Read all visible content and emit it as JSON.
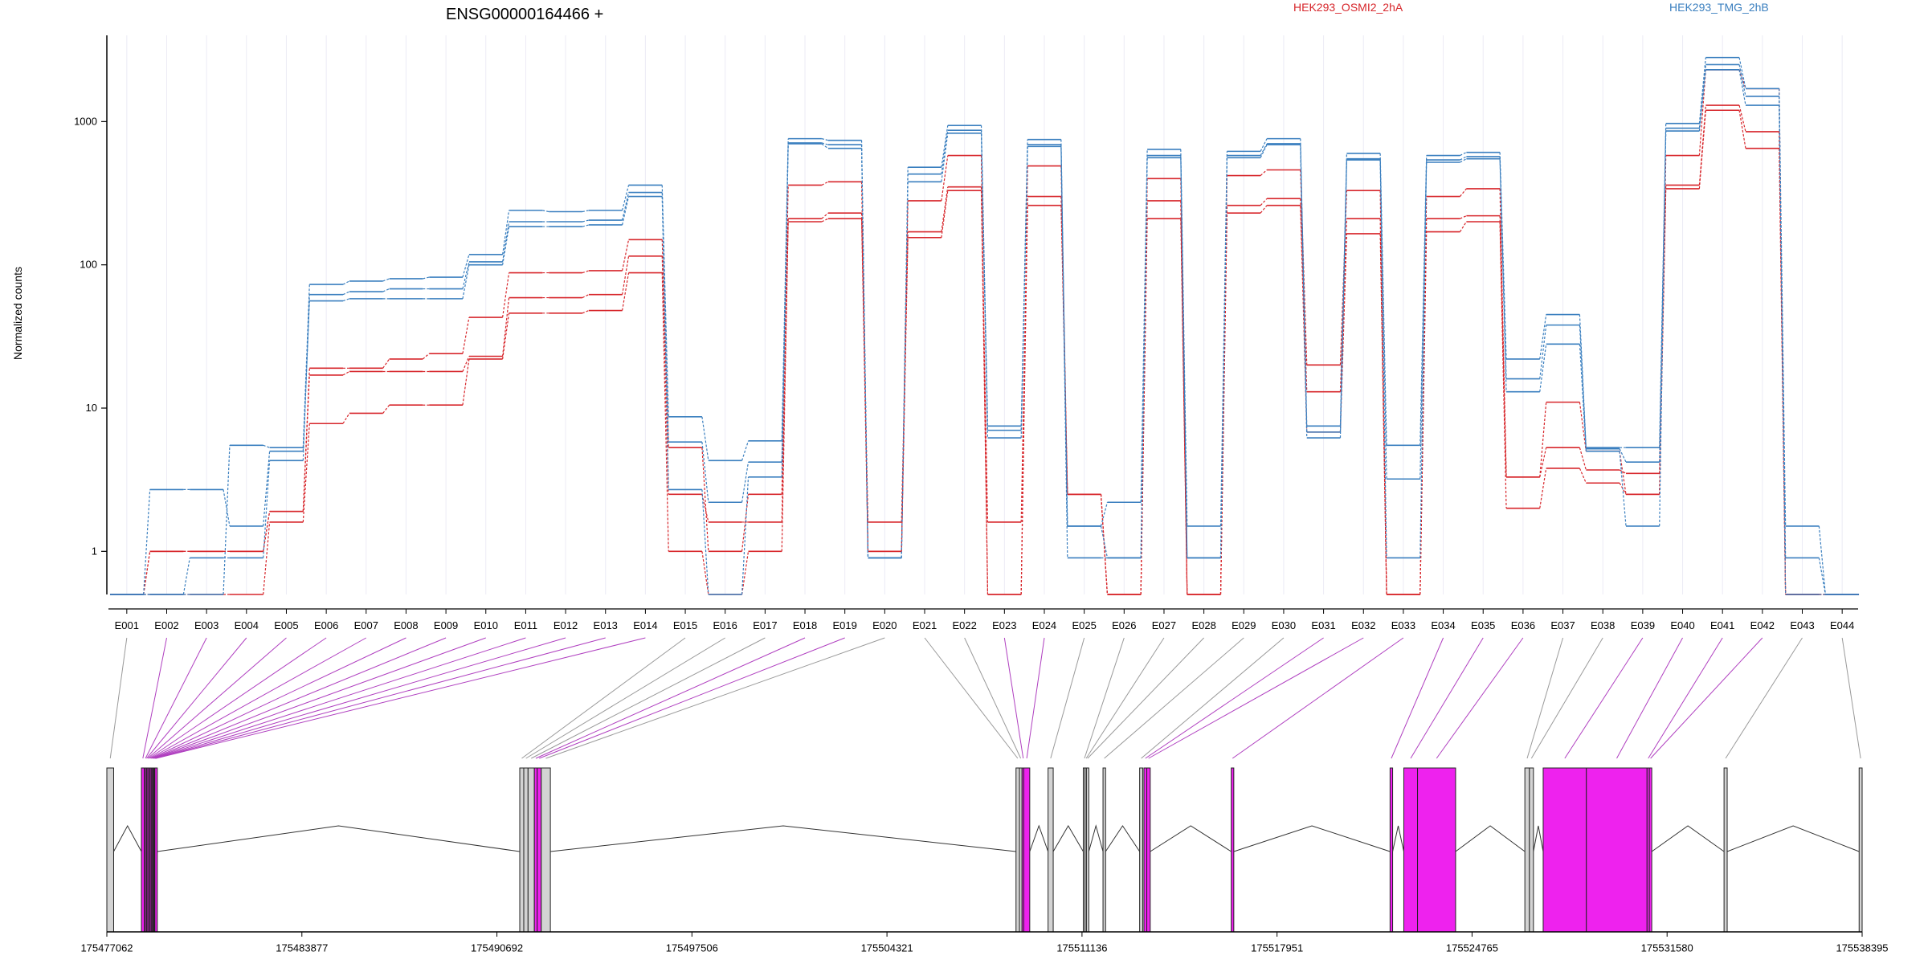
{
  "colors": {
    "HEK293_OSMI2_2hA": "#d7262b",
    "HEK293_TMG_2hB": "#3a7fbf",
    "exon_active": "#ee22ee",
    "exon_inactive": "#d3d3d3",
    "link_active": "#b040c0",
    "link_inactive": "#9a9a9a",
    "gridline": "#ecebf5"
  },
  "chart_data": {
    "type": "line",
    "title": "ENSG00000164466 +",
    "ylabel": "Normalized counts",
    "yscale": "log",
    "ylim": [
      0.5,
      4000
    ],
    "yticks": [
      1,
      10,
      100,
      1000
    ],
    "ytick_labels": [
      "1",
      "10",
      "100",
      "1000"
    ],
    "categories": [
      "E001",
      "E002",
      "E003",
      "E004",
      "E005",
      "E006",
      "E007",
      "E008",
      "E009",
      "E010",
      "E011",
      "E012",
      "E013",
      "E014",
      "E015",
      "E016",
      "E017",
      "E018",
      "E019",
      "E020",
      "E021",
      "E022",
      "E023",
      "E024",
      "E025",
      "E026",
      "E027",
      "E028",
      "E029",
      "E030",
      "E031",
      "E032",
      "E033",
      "E034",
      "E035",
      "E036",
      "E037",
      "E038",
      "E039",
      "E040",
      "E041",
      "E042",
      "E043",
      "E044"
    ],
    "legend": [
      "HEK293_OSMI2_2hA",
      "HEK293_TMG_2hB"
    ],
    "series": [
      {
        "name": "HEK293_OSMI2_2hA",
        "values": [
          0.5,
          0.5,
          0.5,
          0.5,
          1.6,
          7.8,
          9.2,
          10.5,
          10.5,
          22,
          46,
          46,
          48,
          88,
          1,
          0.5,
          1,
          200,
          210,
          1,
          155,
          330,
          0.5,
          260,
          2.5,
          0.5,
          210,
          0.5,
          230,
          260,
          6.8,
          165,
          0.5,
          170,
          200,
          2,
          3.8,
          3,
          2.5,
          340,
          1200,
          650,
          0.5,
          0.5
        ]
      },
      {
        "name": "HEK293_OSMI2_2hA",
        "values": [
          0.5,
          1,
          1,
          1,
          1.9,
          17,
          18,
          18,
          18,
          23,
          59,
          59,
          62,
          115,
          2.5,
          1.6,
          1.6,
          210,
          230,
          1.6,
          170,
          350,
          1.6,
          300,
          2.5,
          0.5,
          280,
          0.5,
          260,
          290,
          13,
          210,
          0.5,
          210,
          220,
          3.3,
          5.3,
          3.7,
          3.5,
          360,
          1300,
          850,
          0.5,
          0.5
        ]
      },
      {
        "name": "HEK293_OSMI2_2hA",
        "values": [
          0.5,
          1,
          1,
          1,
          1.9,
          19,
          19,
          22,
          24,
          43,
          88,
          88,
          91,
          150,
          5.3,
          1,
          2.5,
          360,
          380,
          1,
          280,
          580,
          0.5,
          490,
          2.5,
          0.5,
          400,
          0.5,
          420,
          460,
          20,
          330,
          0.5,
          300,
          340,
          3.3,
          11,
          5,
          2.5,
          580,
          2300,
          1700,
          0.5,
          0.5
        ]
      },
      {
        "name": "HEK293_TMG_2hB",
        "values": [
          0.5,
          2.7,
          2.7,
          1.5,
          5,
          56,
          58,
          58,
          58,
          100,
          185,
          185,
          190,
          300,
          2.7,
          0.5,
          3.3,
          700,
          650,
          0.9,
          380,
          830,
          6.2,
          670,
          1.5,
          0.9,
          560,
          0.9,
          560,
          690,
          6.2,
          540,
          0.9,
          520,
          550,
          13,
          28,
          5,
          1.5,
          860,
          2300,
          1300,
          0.9,
          0.5
        ]
      },
      {
        "name": "HEK293_TMG_2hB",
        "values": [
          0.5,
          0.5,
          0.9,
          0.9,
          4.3,
          62,
          65,
          68,
          68,
          105,
          200,
          200,
          205,
          320,
          5.8,
          2.2,
          4.2,
          710,
          690,
          0.9,
          430,
          870,
          7,
          690,
          0.9,
          0.9,
          580,
          0.9,
          580,
          700,
          6.8,
          550,
          3.2,
          540,
          570,
          16,
          38,
          5.2,
          4.2,
          900,
          2500,
          1500,
          0.5,
          0.5
        ]
      },
      {
        "name": "HEK293_TMG_2hB",
        "values": [
          0.5,
          0.5,
          0.5,
          5.5,
          5.3,
          73,
          77,
          80,
          82,
          118,
          240,
          235,
          240,
          360,
          8.7,
          4.3,
          5.9,
          760,
          740,
          0.9,
          480,
          940,
          7.5,
          750,
          1.5,
          2.2,
          640,
          1.5,
          620,
          760,
          7.5,
          600,
          5.5,
          580,
          610,
          22,
          45,
          5.3,
          5.3,
          970,
          2800,
          1700,
          1.5,
          0.5
        ]
      }
    ],
    "genomic_axis": {
      "tick_labels": [
        "175477062",
        "175483877",
        "175490692",
        "175497506",
        "175504321",
        "175511136",
        "175517951",
        "175524765",
        "175531580",
        "175538395"
      ],
      "tick_positions": [
        175477062,
        175483877,
        175490692,
        175497506,
        175504321,
        175511136,
        175517951,
        175524765,
        175531580,
        175538395
      ],
      "range": [
        175477062,
        175538395
      ]
    },
    "exons": [
      {
        "id": "E001",
        "start": 175477062,
        "end": 175477300,
        "diff": false
      },
      {
        "id": "E002",
        "start": 175478270,
        "end": 175478370,
        "diff": true
      },
      {
        "id": "E003",
        "start": 175478370,
        "end": 175478410,
        "diff": true
      },
      {
        "id": "E004",
        "start": 175478410,
        "end": 175478450,
        "diff": true
      },
      {
        "id": "E005",
        "start": 175478450,
        "end": 175478490,
        "diff": true
      },
      {
        "id": "E006",
        "start": 175478490,
        "end": 175478530,
        "diff": true
      },
      {
        "id": "E007",
        "start": 175478530,
        "end": 175478570,
        "diff": true
      },
      {
        "id": "E008",
        "start": 175478570,
        "end": 175478610,
        "diff": true
      },
      {
        "id": "E009",
        "start": 175478610,
        "end": 175478640,
        "diff": true
      },
      {
        "id": "E010",
        "start": 175478640,
        "end": 175478670,
        "diff": true
      },
      {
        "id": "E011",
        "start": 175478670,
        "end": 175478700,
        "diff": true
      },
      {
        "id": "E012",
        "start": 175478700,
        "end": 175478720,
        "diff": true
      },
      {
        "id": "E013",
        "start": 175478720,
        "end": 175478740,
        "diff": true
      },
      {
        "id": "E014",
        "start": 175478740,
        "end": 175478760,
        "diff": true
      },
      {
        "id": "E015",
        "start": 175491490,
        "end": 175491630,
        "diff": false
      },
      {
        "id": "E016",
        "start": 175491630,
        "end": 175491780,
        "diff": false
      },
      {
        "id": "E017",
        "start": 175491780,
        "end": 175492000,
        "diff": false
      },
      {
        "id": "E018",
        "start": 175492000,
        "end": 175492100,
        "diff": true
      },
      {
        "id": "E019",
        "start": 175492100,
        "end": 175492240,
        "diff": true
      },
      {
        "id": "E020",
        "start": 175492240,
        "end": 175492560,
        "diff": false
      },
      {
        "id": "E021",
        "start": 175508830,
        "end": 175508950,
        "diff": false
      },
      {
        "id": "E022",
        "start": 175508950,
        "end": 175509040,
        "diff": false
      },
      {
        "id": "E023",
        "start": 175509040,
        "end": 175509100,
        "diff": true
      },
      {
        "id": "E024",
        "start": 175509100,
        "end": 175509310,
        "diff": true
      },
      {
        "id": "E025",
        "start": 175509950,
        "end": 175510130,
        "diff": false
      },
      {
        "id": "E026",
        "start": 175511180,
        "end": 175511240,
        "diff": false
      },
      {
        "id": "E027",
        "start": 175511240,
        "end": 175511290,
        "diff": false
      },
      {
        "id": "E028",
        "start": 175511290,
        "end": 175511340,
        "diff": false
      },
      {
        "id": "E029",
        "start": 175511870,
        "end": 175511960,
        "diff": false
      },
      {
        "id": "E030",
        "start": 175513150,
        "end": 175513260,
        "diff": false
      },
      {
        "id": "E031",
        "start": 175513300,
        "end": 175513400,
        "diff": true
      },
      {
        "id": "E032",
        "start": 175513400,
        "end": 175513520,
        "diff": true
      },
      {
        "id": "E033",
        "start": 175516350,
        "end": 175516440,
        "diff": true
      },
      {
        "id": "E034",
        "start": 175521900,
        "end": 175521990,
        "diff": true
      },
      {
        "id": "E035",
        "start": 175522380,
        "end": 175522860,
        "diff": true
      },
      {
        "id": "E036",
        "start": 175522860,
        "end": 175524190,
        "diff": true
      },
      {
        "id": "E037",
        "start": 175526610,
        "end": 175526770,
        "diff": false
      },
      {
        "id": "E038",
        "start": 175526770,
        "end": 175526910,
        "diff": false
      },
      {
        "id": "E039",
        "start": 175527250,
        "end": 175528760,
        "diff": true
      },
      {
        "id": "E040",
        "start": 175528760,
        "end": 175530880,
        "diff": true
      },
      {
        "id": "E041",
        "start": 175530880,
        "end": 175530960,
        "diff": true
      },
      {
        "id": "E042",
        "start": 175530960,
        "end": 175531030,
        "diff": true
      },
      {
        "id": "E043",
        "start": 175533570,
        "end": 175533680,
        "diff": false
      },
      {
        "id": "E044",
        "start": 175538290,
        "end": 175538395,
        "diff": false
      }
    ]
  }
}
